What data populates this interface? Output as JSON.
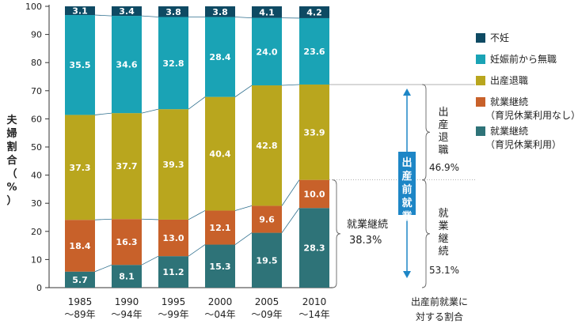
{
  "chart_data": {
    "type": "bar",
    "stacked": true,
    "percent_stacked": true,
    "ylabel": "夫婦割合（%）",
    "ylim": [
      0,
      100
    ],
    "yticks": [
      0,
      10,
      20,
      30,
      40,
      50,
      60,
      70,
      80,
      90,
      100
    ],
    "categories": [
      {
        "line1": "1985",
        "line2": "〜89年"
      },
      {
        "line1": "1990",
        "line2": "〜94年"
      },
      {
        "line1": "1995",
        "line2": "〜99年"
      },
      {
        "line1": "2000",
        "line2": "〜04年"
      },
      {
        "line1": "2005",
        "line2": "〜09年"
      },
      {
        "line1": "2010",
        "line2": "〜14年"
      }
    ],
    "series": [
      {
        "name": "就業継続（育児休業利用）",
        "legend_lines": [
          "就業継続",
          "（育児休業利用）"
        ],
        "color": "#2e7378",
        "values": [
          5.7,
          8.1,
          11.2,
          15.3,
          19.5,
          28.3
        ]
      },
      {
        "name": "就業継続（育児休業利用なし）",
        "legend_lines": [
          "就業継続",
          "（育児休業利用なし）"
        ],
        "color": "#c8612a",
        "values": [
          18.4,
          16.3,
          13.0,
          12.1,
          9.6,
          10.0
        ]
      },
      {
        "name": "出産退職",
        "legend_lines": [
          "出産退職"
        ],
        "color": "#b9a61e",
        "values": [
          37.3,
          37.7,
          39.3,
          40.4,
          42.8,
          33.9
        ]
      },
      {
        "name": "妊娠前から無職",
        "legend_lines": [
          "妊娠前から無職"
        ],
        "color": "#1aa3b5",
        "values": [
          35.5,
          34.6,
          32.8,
          28.4,
          24.0,
          23.6
        ]
      },
      {
        "name": "不妊",
        "legend_lines": [
          "不妊"
        ],
        "color": "#0e4a63",
        "values": [
          3.1,
          3.4,
          3.8,
          3.8,
          4.1,
          4.2
        ]
      }
    ],
    "legend_position": "right",
    "grid": false,
    "annotations": {
      "pre_birth_employment": "出産前就業",
      "resigned_label": "出産退職",
      "resigned_pct": "46.9%",
      "continued_label": "就業継続",
      "continued_pct_left": "38.3%",
      "continued_pct_right": "53.1%",
      "axis_note_line1": "出産前就業に",
      "axis_note_line2": "対する割合"
    }
  }
}
